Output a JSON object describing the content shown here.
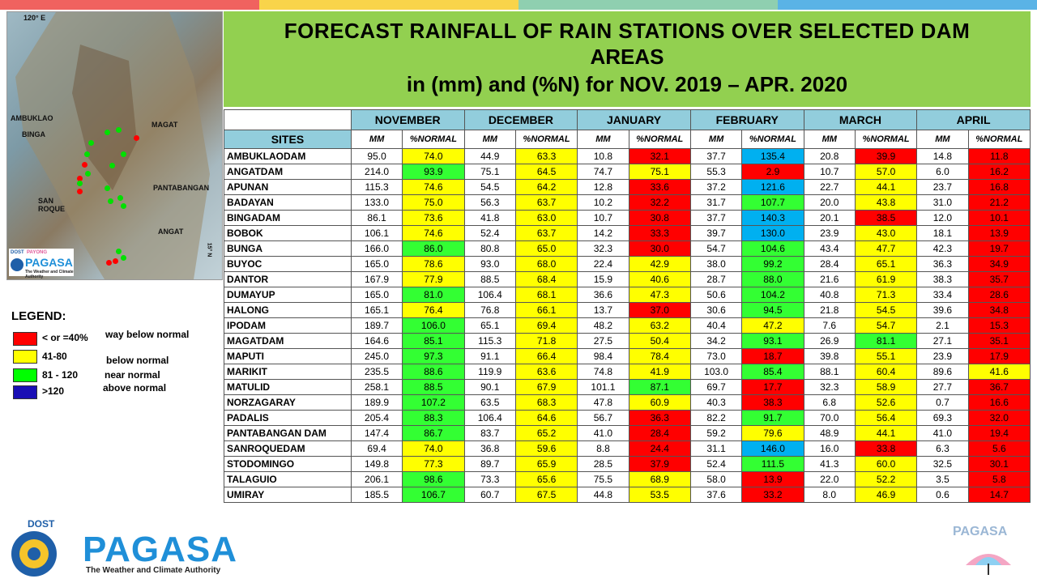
{
  "header": {
    "line1": "FORECAST RAINFALL OF RAIN STATIONS OVER SELECTED DAM",
    "line2": "AREAS",
    "line3": "in (mm) and (%N) for NOV. 2019 – APR. 2020"
  },
  "map": {
    "labels": [
      "120° E",
      "AMBUKLAO",
      "BINGA",
      "MAGAT",
      "SAN ROQUE",
      "PANTABANGAN",
      "ANGAT",
      "15° N"
    ],
    "logo_text": "PAGASA",
    "logo_sub": "The Weather and Climate Authority",
    "dost": "DOST",
    "payong": "PAYONG"
  },
  "table": {
    "sites_header": "SITES",
    "months": [
      "NOVEMBER",
      "DECEMBER",
      "JANUARY",
      "FEBRUARY",
      "MARCH",
      "APRIL"
    ],
    "mm": "MM",
    "pn": "%NORMAL",
    "rows": [
      {
        "site": "AMBUKLAODAM",
        "v": [
          "95.0",
          "74.0",
          "44.9",
          "63.3",
          "10.8",
          "32.1",
          "37.7",
          "135.4",
          "20.8",
          "39.9",
          "14.8",
          "11.8"
        ]
      },
      {
        "site": "ANGATDAM",
        "v": [
          "214.0",
          "93.9",
          "75.1",
          "64.5",
          "74.7",
          "75.1",
          "55.3",
          "2.9",
          "10.7",
          "57.0",
          "6.0",
          "16.2"
        ]
      },
      {
        "site": "APUNAN",
        "v": [
          "115.3",
          "74.6",
          "54.5",
          "64.2",
          "12.8",
          "33.6",
          "37.2",
          "121.6",
          "22.7",
          "44.1",
          "23.7",
          "16.8"
        ]
      },
      {
        "site": "BADAYAN",
        "v": [
          "133.0",
          "75.0",
          "56.3",
          "63.7",
          "10.2",
          "32.2",
          "31.7",
          "107.7",
          "20.0",
          "43.8",
          "31.0",
          "21.2"
        ]
      },
      {
        "site": "BINGADAM",
        "v": [
          "86.1",
          "73.6",
          "41.8",
          "63.0",
          "10.7",
          "30.8",
          "37.7",
          "140.3",
          "20.1",
          "38.5",
          "12.0",
          "10.1"
        ]
      },
      {
        "site": "BOBOK",
        "v": [
          "106.1",
          "74.6",
          "52.4",
          "63.7",
          "14.2",
          "33.3",
          "39.7",
          "130.0",
          "23.9",
          "43.0",
          "18.1",
          "13.9"
        ]
      },
      {
        "site": "BUNGA",
        "v": [
          "166.0",
          "86.0",
          "80.8",
          "65.0",
          "32.3",
          "30.0",
          "54.7",
          "104.6",
          "43.4",
          "47.7",
          "42.3",
          "19.7"
        ]
      },
      {
        "site": "BUYOC",
        "v": [
          "165.0",
          "78.6",
          "93.0",
          "68.0",
          "22.4",
          "42.9",
          "38.0",
          "99.2",
          "28.4",
          "65.1",
          "36.3",
          "34.9"
        ]
      },
      {
        "site": "DANTOR",
        "v": [
          "167.9",
          "77.9",
          "88.5",
          "68.4",
          "15.9",
          "40.6",
          "28.7",
          "88.0",
          "21.6",
          "61.9",
          "38.3",
          "35.7"
        ]
      },
      {
        "site": "DUMAYUP",
        "v": [
          "165.0",
          "81.0",
          "106.4",
          "68.1",
          "36.6",
          "47.3",
          "50.6",
          "104.2",
          "40.8",
          "71.3",
          "33.4",
          "28.6"
        ]
      },
      {
        "site": "HALONG",
        "v": [
          "165.1",
          "76.4",
          "76.8",
          "66.1",
          "13.7",
          "37.0",
          "30.6",
          "94.5",
          "21.8",
          "54.5",
          "39.6",
          "34.8"
        ]
      },
      {
        "site": "IPODAM",
        "v": [
          "189.7",
          "106.0",
          "65.1",
          "69.4",
          "48.2",
          "63.2",
          "40.4",
          "47.2",
          "7.6",
          "54.7",
          "2.1",
          "15.3"
        ]
      },
      {
        "site": "MAGATDAM",
        "v": [
          "164.6",
          "85.1",
          "115.3",
          "71.8",
          "27.5",
          "50.4",
          "34.2",
          "93.1",
          "26.9",
          "81.1",
          "27.1",
          "35.1"
        ]
      },
      {
        "site": "MAPUTI",
        "v": [
          "245.0",
          "97.3",
          "91.1",
          "66.4",
          "98.4",
          "78.4",
          "73.0",
          "18.7",
          "39.8",
          "55.1",
          "23.9",
          "17.9"
        ]
      },
      {
        "site": "MARIKIT",
        "v": [
          "235.5",
          "88.6",
          "119.9",
          "63.6",
          "74.8",
          "41.9",
          "103.0",
          "85.4",
          "88.1",
          "60.4",
          "89.6",
          "41.6"
        ]
      },
      {
        "site": "MATULID",
        "v": [
          "258.1",
          "88.5",
          "90.1",
          "67.9",
          "101.1",
          "87.1",
          "69.7",
          "17.7",
          "32.3",
          "58.9",
          "27.7",
          "36.7"
        ]
      },
      {
        "site": "NORZAGARAY",
        "v": [
          "189.9",
          "107.2",
          "63.5",
          "68.3",
          "47.8",
          "60.9",
          "40.3",
          "38.3",
          "6.8",
          "52.6",
          "0.7",
          "16.6"
        ]
      },
      {
        "site": "PADALIS",
        "v": [
          "205.4",
          "88.3",
          "106.4",
          "64.6",
          "56.7",
          "36.3",
          "82.2",
          "91.7",
          "70.0",
          "56.4",
          "69.3",
          "32.0"
        ]
      },
      {
        "site": "PANTABANGAN DAM",
        "v": [
          "147.4",
          "86.7",
          "83.7",
          "65.2",
          "41.0",
          "28.4",
          "59.2",
          "79.6",
          "48.9",
          "44.1",
          "41.0",
          "19.4"
        ]
      },
      {
        "site": "SANROQUEDAM",
        "v": [
          "69.4",
          "74.0",
          "36.8",
          "59.6",
          "8.8",
          "24.4",
          "31.1",
          "146.0",
          "16.0",
          "33.8",
          "6.3",
          "5.6"
        ]
      },
      {
        "site": "STODOMINGO",
        "v": [
          "149.8",
          "77.3",
          "89.7",
          "65.9",
          "28.5",
          "37.9",
          "52.4",
          "111.5",
          "41.3",
          "60.0",
          "32.5",
          "30.1"
        ]
      },
      {
        "site": "TALAGUIO",
        "v": [
          "206.1",
          "98.6",
          "73.3",
          "65.6",
          "75.5",
          "68.9",
          "58.0",
          "13.9",
          "22.0",
          "52.2",
          "3.5",
          "5.8"
        ]
      },
      {
        "site": "UMIRAY",
        "v": [
          "185.5",
          "106.7",
          "60.7",
          "67.5",
          "44.8",
          "53.5",
          "37.6",
          "33.2",
          "8.0",
          "46.9",
          "0.6",
          "14.7"
        ]
      }
    ]
  },
  "legend": {
    "title": "LEGEND:",
    "items": [
      {
        "range": "< or =40%",
        "desc": "way below normal",
        "color": "#ff0000"
      },
      {
        "range": "41-80",
        "desc": "below normal",
        "color": "#ffff00"
      },
      {
        "range": "81 - 120",
        "desc": "near normal",
        "color": "#00ff00"
      },
      {
        "range": ">120",
        "desc": "above normal",
        "color": "#1a0fb5"
      }
    ]
  },
  "colors": {
    "red": "#ff0000",
    "yellow": "#ffff00",
    "green": "#33ff33",
    "blue": "#00b0f0",
    "title_bg": "#92d050",
    "header_bg": "#92cddc"
  },
  "footer": {
    "dost": "DOST",
    "name": "PAGASA",
    "sub": "The Weather and Climate Authority",
    "watermark": "PAGASA"
  }
}
